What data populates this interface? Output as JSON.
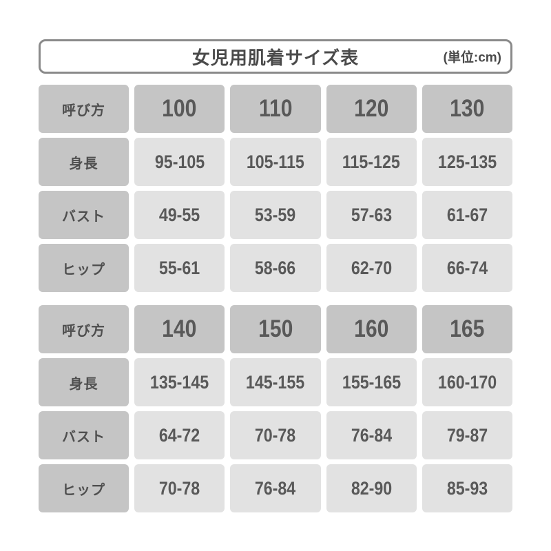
{
  "title": {
    "text": "女児用肌着サイズ表",
    "unit": "(単位:cm)"
  },
  "colors": {
    "header_cell": "#c5c5c5",
    "data_cell": "#e2e2e2",
    "title_border": "#8a8a8a",
    "label_text": "#4f4f4f",
    "number_text": "#595959",
    "background": "#ffffff"
  },
  "chart_data": {
    "type": "table",
    "title": "女児用肌着サイズ表",
    "unit_note": "(単位:cm)",
    "tables": [
      {
        "rows": [
          {
            "label": "呼び方",
            "header": true,
            "values": [
              "100",
              "110",
              "120",
              "130"
            ]
          },
          {
            "label": "身長",
            "header": false,
            "values": [
              "95-105",
              "105-115",
              "115-125",
              "125-135"
            ]
          },
          {
            "label": "バスト",
            "header": false,
            "values": [
              "49-55",
              "53-59",
              "57-63",
              "61-67"
            ]
          },
          {
            "label": "ヒップ",
            "header": false,
            "values": [
              "55-61",
              "58-66",
              "62-70",
              "66-74"
            ]
          }
        ]
      },
      {
        "rows": [
          {
            "label": "呼び方",
            "header": true,
            "values": [
              "140",
              "150",
              "160",
              "165"
            ]
          },
          {
            "label": "身長",
            "header": false,
            "values": [
              "135-145",
              "145-155",
              "155-165",
              "160-170"
            ]
          },
          {
            "label": "バスト",
            "header": false,
            "values": [
              "64-72",
              "70-78",
              "76-84",
              "79-87"
            ]
          },
          {
            "label": "ヒップ",
            "header": false,
            "values": [
              "70-78",
              "76-84",
              "82-90",
              "85-93"
            ]
          }
        ]
      }
    ]
  }
}
